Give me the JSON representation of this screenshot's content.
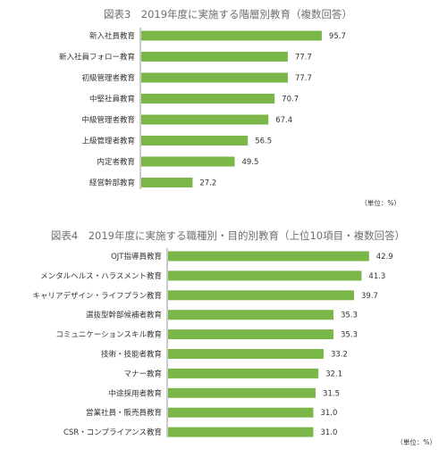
{
  "chart_data": [
    {
      "type": "bar",
      "orientation": "horizontal",
      "title": "図表3　2019年度に実施する階層別教育（複数回答）",
      "unit_label": "（単位：%）",
      "categories": [
        "新入社員教育",
        "新入社員フォロー教育",
        "初級管理者教育",
        "中堅社員教育",
        "中級管理者教育",
        "上級管理者教育",
        "内定者教育",
        "経営幹部教育"
      ],
      "values": [
        95.7,
        77.7,
        77.7,
        70.7,
        67.4,
        56.5,
        49.5,
        27.2
      ],
      "value_labels": [
        "95.7",
        "77.7",
        "77.7",
        "70.7",
        "67.4",
        "56.5",
        "49.5",
        "27.2"
      ],
      "xlim": [
        0,
        100
      ],
      "grid": false,
      "colors": {
        "bar": "#7ab648"
      }
    },
    {
      "type": "bar",
      "orientation": "horizontal",
      "title": "図表4　2019年度に実施する職種別・目的別教育（上位10項目・複数回答）",
      "unit_label": "（単位：%）",
      "categories": [
        "OJT指導員教育",
        "メンタルヘルス・ハラスメント教育",
        "キャリアデザイン・ライフプラン教育",
        "選抜型幹部候補者教育",
        "コミュニケーションスキル教育",
        "技術・技能者教育",
        "マナー教育",
        "中途採用者教育",
        "営業社員・販売員教育",
        "CSR・コンプライアンス教育"
      ],
      "values": [
        42.9,
        41.3,
        39.7,
        35.3,
        35.3,
        33.2,
        32.1,
        31.5,
        31.0,
        31.0
      ],
      "value_labels": [
        "42.9",
        "41.3",
        "39.7",
        "35.3",
        "35.3",
        "33.2",
        "32.1",
        "31.5",
        "31.0",
        "31.0"
      ],
      "xlim": [
        0,
        50
      ],
      "grid": false,
      "colors": {
        "bar": "#7ab648"
      }
    }
  ]
}
